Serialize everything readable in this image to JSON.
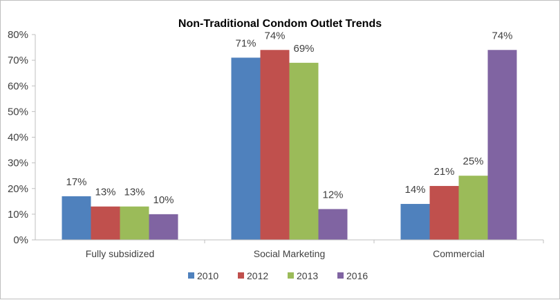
{
  "chart_data": {
    "type": "bar",
    "title": "Non-Traditional Condom Outlet Trends",
    "categories": [
      "Fully subsidized",
      "Social Marketing",
      "Commercial"
    ],
    "series": [
      {
        "name": "2010",
        "color": "#4f81bd",
        "values": [
          17,
          71,
          14
        ]
      },
      {
        "name": "2012",
        "color": "#c0504d",
        "values": [
          13,
          74,
          21
        ]
      },
      {
        "name": "2013",
        "color": "#9bbb59",
        "values": [
          13,
          69,
          25
        ]
      },
      {
        "name": "2016",
        "color": "#8064a2",
        "values": [
          10,
          12,
          74
        ]
      }
    ],
    "y_ticks": [
      "0%",
      "10%",
      "20%",
      "30%",
      "40%",
      "50%",
      "60%",
      "70%",
      "80%"
    ],
    "ylim": [
      0,
      80
    ],
    "value_suffix": "%",
    "legend_position": "bottom",
    "grid": false
  }
}
